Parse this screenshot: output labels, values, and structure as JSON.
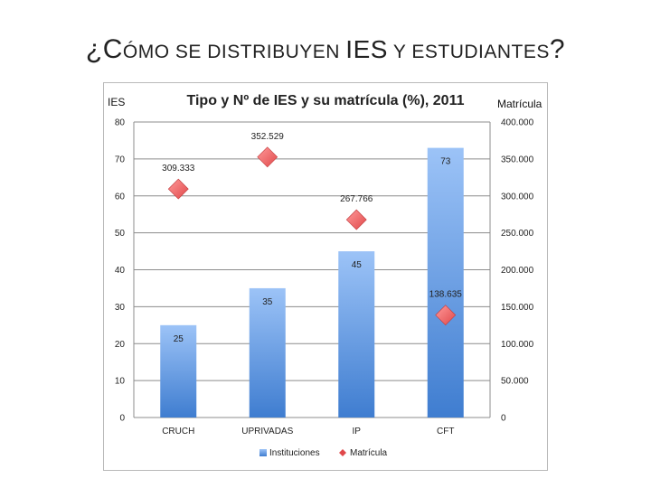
{
  "slide": {
    "title_part1": "¿C",
    "title_part2": "ÓMO SE DISTRIBUYEN ",
    "title_part3": "IES",
    "title_part4": " Y ESTUDIANTES",
    "title_part5": "?"
  },
  "chart_data": {
    "type": "bar",
    "title": "Tipo y Nº de IES y su matrícula (%), 2011",
    "ylabel_left": "IES",
    "ylabel_right": "Matrícula",
    "categories": [
      "CRUCH",
      "UPRIVADAS",
      "IP",
      "CFT"
    ],
    "series": [
      {
        "name": "Instituciones",
        "type": "bar",
        "axis": "left",
        "values": [
          25,
          35,
          45,
          73
        ],
        "labels": [
          "25",
          "35",
          "45",
          "73"
        ]
      },
      {
        "name": "Matrícula",
        "type": "scatter",
        "axis": "right",
        "values": [
          309333,
          352529,
          267766,
          138635
        ],
        "labels": [
          "309.333",
          "352.529",
          "267.766",
          "138.635"
        ]
      }
    ],
    "ylim_left": [
      0,
      80
    ],
    "yticks_left": [
      "0",
      "10",
      "20",
      "30",
      "40",
      "50",
      "60",
      "70",
      "80"
    ],
    "ylim_right": [
      0,
      400000
    ],
    "yticks_right": [
      "0",
      "50.000",
      "100.000",
      "150.000",
      "200.000",
      "250.000",
      "300.000",
      "350.000",
      "400.000"
    ],
    "grid": true,
    "legend": "bottom",
    "colors": {
      "bar_top": "#9cc3f7",
      "bar_bottom": "#3f7dd0",
      "marker": "#e0484a",
      "marker_light": "#ff9a9a",
      "grid": "#8c8c8c"
    }
  }
}
